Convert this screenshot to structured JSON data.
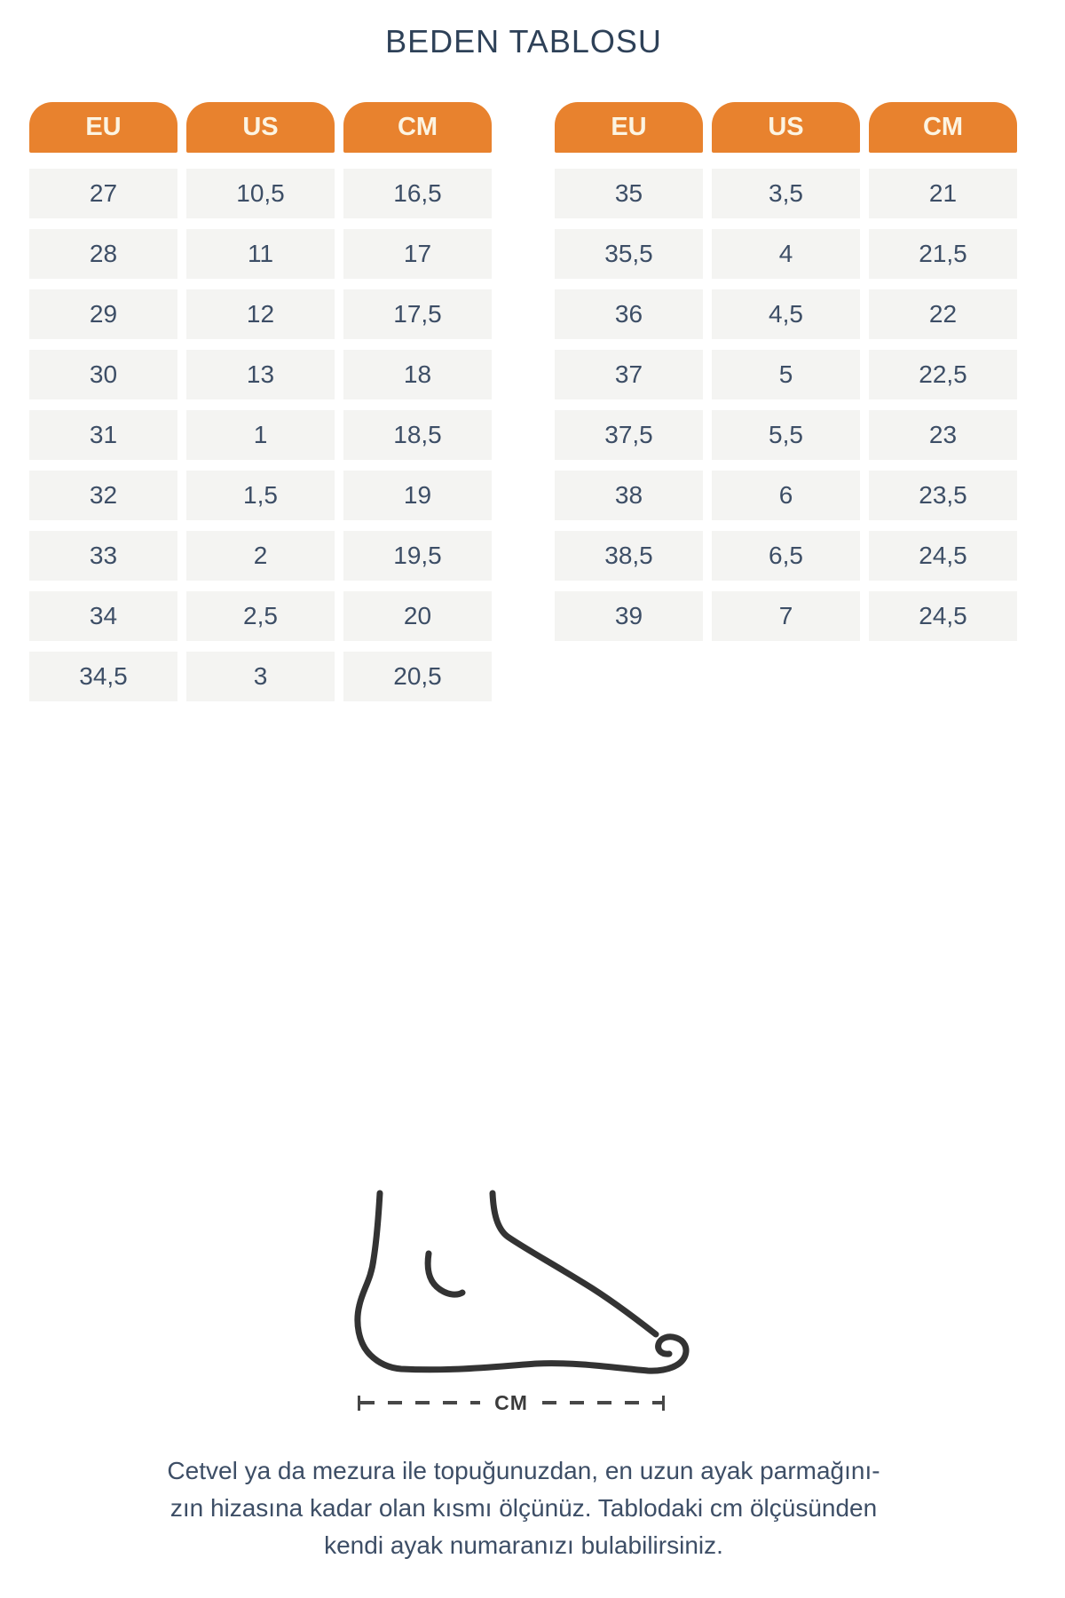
{
  "title": "BEDEN TABLOSU",
  "colors": {
    "accent_orange": "#e8822e",
    "header_text": "#fcf4e2",
    "row_background": "#f4f4f2",
    "text_navy": "#3d4e66"
  },
  "tables": {
    "left": {
      "headers": [
        "EU",
        "US",
        "CM"
      ],
      "rows": [
        [
          "27",
          "10,5",
          "16,5"
        ],
        [
          "28",
          "11",
          "17"
        ],
        [
          "29",
          "12",
          "17,5"
        ],
        [
          "30",
          "13",
          "18"
        ],
        [
          "31",
          "1",
          "18,5"
        ],
        [
          "32",
          "1,5",
          "19"
        ],
        [
          "33",
          "2",
          "19,5"
        ],
        [
          "34",
          "2,5",
          "20"
        ],
        [
          "34,5",
          "3",
          "20,5"
        ]
      ]
    },
    "right": {
      "headers": [
        "EU",
        "US",
        "CM"
      ],
      "rows": [
        [
          "35",
          "3,5",
          "21"
        ],
        [
          "35,5",
          "4",
          "21,5"
        ],
        [
          "36",
          "4,5",
          "22"
        ],
        [
          "37",
          "5",
          "22,5"
        ],
        [
          "37,5",
          "5,5",
          "23"
        ],
        [
          "38",
          "6",
          "23,5"
        ],
        [
          "38,5",
          "6,5",
          "24,5"
        ],
        [
          "39",
          "7",
          "24,5"
        ]
      ]
    }
  },
  "figure": {
    "measure_label": "CM"
  },
  "footer": {
    "line1": "Cetvel ya da mezura ile topuğunuzdan, en uzun ayak parmağını-",
    "line2": "zın hizasına kadar olan kısmı ölçünüz. Tablodaki cm ölçüsünden",
    "line3": "kendi ayak numaranızı bulabilirsiniz."
  }
}
